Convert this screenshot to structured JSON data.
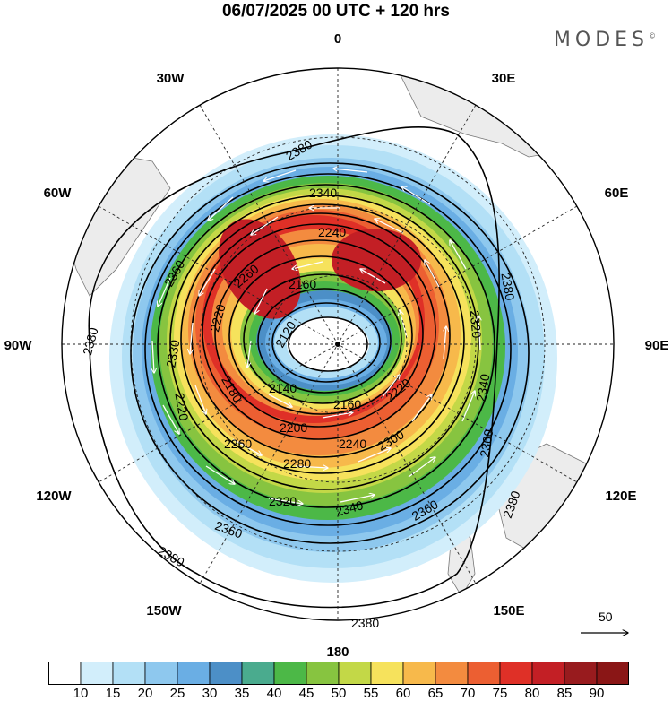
{
  "title": "06/07/2025  00 UTC  + 120 hrs",
  "brand": "MODES",
  "brand_mark": "©",
  "longitude_labels": {
    "n": "0",
    "e30": "30E",
    "e60": "60E",
    "e90": "90E",
    "e120": "120E",
    "e150": "150E",
    "s": "180",
    "w150": "150W",
    "w120": "120W",
    "w90": "90W",
    "w60": "60W",
    "w30": "30W"
  },
  "contour_labels": [
    "2380",
    "2340",
    "2240",
    "2260",
    "2160",
    "2120",
    "2220",
    "2330",
    "2180",
    "2140",
    "2160",
    "2220",
    "2200",
    "2240",
    "2260",
    "2280",
    "2300",
    "2320",
    "2340",
    "2360",
    "2380",
    "2380",
    "2360",
    "2380",
    "2380",
    "2320",
    "2360",
    "2220",
    "2380",
    "2360",
    "2340"
  ],
  "vector_reference": {
    "value": "50"
  },
  "colorbar": {
    "labels": [
      "10",
      "15",
      "20",
      "25",
      "30",
      "35",
      "40",
      "45",
      "50",
      "55",
      "60",
      "65",
      "70",
      "75",
      "80",
      "85",
      "90"
    ],
    "colors": [
      "#ffffff",
      "#d2eefb",
      "#b3e0f6",
      "#8ec8ee",
      "#6aaee4",
      "#4c8fc7",
      "#4aab8e",
      "#4cb847",
      "#87c440",
      "#c3d847",
      "#f6e25c",
      "#f7b94b",
      "#f38b3f",
      "#ec5f32",
      "#df3027",
      "#c31f25",
      "#981b1e"
    ]
  },
  "colors": {
    "land": "#ececec",
    "coast": "#777777",
    "grid": "#222222"
  }
}
